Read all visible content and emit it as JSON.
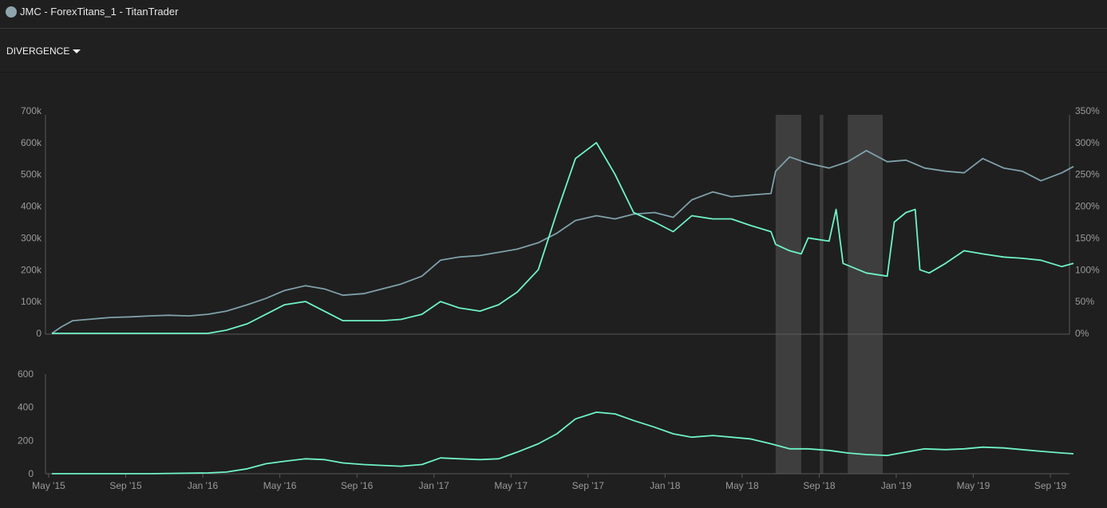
{
  "header": {
    "title": "JMC - ForexTitans_1 - TitanTrader"
  },
  "toolbar": {
    "dropdown_label": "DIVERGENCE"
  },
  "colors": {
    "equity": "#7fa0aa",
    "percent": "#6ff2c8",
    "lower": "#6ff2c8",
    "shade": "#444444",
    "axis": "#5a5a5a"
  },
  "chart_data": [
    {
      "type": "line",
      "x_axis_labels": [
        "May '15",
        "Sep '15",
        "Jan '16",
        "May '16",
        "Sep '16",
        "Jan '17",
        "May '17",
        "Sep '17",
        "Jan '18",
        "May '18",
        "Sep '18",
        "Jan '19",
        "May '19",
        "Sep '19"
      ],
      "x_range": [
        2015.33,
        2019.72
      ],
      "y_left": {
        "ticks": [
          "0",
          "100k",
          "200k",
          "300k",
          "400k",
          "500k",
          "600k",
          "700k"
        ],
        "ylim": [
          0,
          700000
        ]
      },
      "y_right": {
        "ticks": [
          "0%",
          "50%",
          "100%",
          "150%",
          "200%",
          "250%",
          "300%",
          "350%"
        ],
        "ylim": [
          0,
          350
        ]
      },
      "shaded_regions": [
        [
          2018.44,
          2018.55
        ],
        [
          2018.63,
          2018.645
        ],
        [
          2018.75,
          2018.9
        ]
      ],
      "series": [
        {
          "axis": "left",
          "points": [
            [
              2015.33,
              0
            ],
            [
              2015.37,
              20000
            ],
            [
              2015.42,
              40000
            ],
            [
              2015.5,
              45000
            ],
            [
              2015.58,
              50000
            ],
            [
              2015.67,
              52000
            ],
            [
              2015.75,
              55000
            ],
            [
              2015.83,
              57000
            ],
            [
              2015.92,
              55000
            ],
            [
              2016.0,
              60000
            ],
            [
              2016.08,
              70000
            ],
            [
              2016.17,
              90000
            ],
            [
              2016.25,
              110000
            ],
            [
              2016.33,
              135000
            ],
            [
              2016.42,
              150000
            ],
            [
              2016.5,
              140000
            ],
            [
              2016.58,
              120000
            ],
            [
              2016.67,
              125000
            ],
            [
              2016.75,
              140000
            ],
            [
              2016.83,
              155000
            ],
            [
              2016.92,
              180000
            ],
            [
              2017.0,
              230000
            ],
            [
              2017.08,
              240000
            ],
            [
              2017.17,
              245000
            ],
            [
              2017.25,
              255000
            ],
            [
              2017.33,
              265000
            ],
            [
              2017.42,
              285000
            ],
            [
              2017.5,
              315000
            ],
            [
              2017.58,
              355000
            ],
            [
              2017.67,
              370000
            ],
            [
              2017.75,
              360000
            ],
            [
              2017.83,
              375000
            ],
            [
              2017.92,
              380000
            ],
            [
              2018.0,
              365000
            ],
            [
              2018.08,
              420000
            ],
            [
              2018.17,
              445000
            ],
            [
              2018.25,
              430000
            ],
            [
              2018.33,
              435000
            ],
            [
              2018.42,
              440000
            ],
            [
              2018.44,
              510000
            ],
            [
              2018.5,
              555000
            ],
            [
              2018.58,
              535000
            ],
            [
              2018.67,
              520000
            ],
            [
              2018.75,
              540000
            ],
            [
              2018.83,
              575000
            ],
            [
              2018.92,
              540000
            ],
            [
              2019.0,
              545000
            ],
            [
              2019.08,
              520000
            ],
            [
              2019.17,
              510000
            ],
            [
              2019.25,
              505000
            ],
            [
              2019.33,
              550000
            ],
            [
              2019.42,
              520000
            ],
            [
              2019.5,
              510000
            ],
            [
              2019.58,
              480000
            ],
            [
              2019.67,
              505000
            ],
            [
              2019.72,
              525000
            ]
          ]
        },
        {
          "axis": "right",
          "points": [
            [
              2015.33,
              0
            ],
            [
              2015.5,
              0
            ],
            [
              2015.75,
              0
            ],
            [
              2016.0,
              0
            ],
            [
              2016.08,
              5
            ],
            [
              2016.17,
              15
            ],
            [
              2016.25,
              30
            ],
            [
              2016.33,
              45
            ],
            [
              2016.42,
              50
            ],
            [
              2016.5,
              35
            ],
            [
              2016.58,
              20
            ],
            [
              2016.67,
              20
            ],
            [
              2016.75,
              20
            ],
            [
              2016.83,
              22
            ],
            [
              2016.92,
              30
            ],
            [
              2017.0,
              50
            ],
            [
              2017.08,
              40
            ],
            [
              2017.17,
              35
            ],
            [
              2017.25,
              45
            ],
            [
              2017.33,
              65
            ],
            [
              2017.42,
              100
            ],
            [
              2017.5,
              190
            ],
            [
              2017.58,
              275
            ],
            [
              2017.67,
              300
            ],
            [
              2017.75,
              250
            ],
            [
              2017.83,
              190
            ],
            [
              2017.92,
              175
            ],
            [
              2018.0,
              160
            ],
            [
              2018.08,
              185
            ],
            [
              2018.17,
              180
            ],
            [
              2018.25,
              180
            ],
            [
              2018.33,
              170
            ],
            [
              2018.42,
              160
            ],
            [
              2018.44,
              140
            ],
            [
              2018.5,
              130
            ],
            [
              2018.55,
              125
            ],
            [
              2018.58,
              150
            ],
            [
              2018.67,
              145
            ],
            [
              2018.7,
              195
            ],
            [
              2018.73,
              110
            ],
            [
              2018.83,
              95
            ],
            [
              2018.92,
              90
            ],
            [
              2018.95,
              175
            ],
            [
              2019.0,
              190
            ],
            [
              2019.04,
              195
            ],
            [
              2019.06,
              100
            ],
            [
              2019.1,
              95
            ],
            [
              2019.17,
              110
            ],
            [
              2019.25,
              130
            ],
            [
              2019.33,
              125
            ],
            [
              2019.42,
              120
            ],
            [
              2019.5,
              118
            ],
            [
              2019.58,
              115
            ],
            [
              2019.67,
              105
            ],
            [
              2019.72,
              110
            ]
          ]
        }
      ]
    },
    {
      "type": "line",
      "x_range": [
        2015.33,
        2019.72
      ],
      "y_left": {
        "ticks": [
          "0",
          "200",
          "400",
          "600"
        ],
        "ylim": [
          0,
          600
        ]
      },
      "series": [
        {
          "points": [
            [
              2015.33,
              0
            ],
            [
              2015.5,
              0
            ],
            [
              2015.75,
              0
            ],
            [
              2016.0,
              5
            ],
            [
              2016.08,
              10
            ],
            [
              2016.17,
              30
            ],
            [
              2016.25,
              60
            ],
            [
              2016.33,
              75
            ],
            [
              2016.42,
              90
            ],
            [
              2016.5,
              85
            ],
            [
              2016.58,
              65
            ],
            [
              2016.67,
              55
            ],
            [
              2016.75,
              50
            ],
            [
              2016.83,
              45
            ],
            [
              2016.92,
              55
            ],
            [
              2017.0,
              95
            ],
            [
              2017.08,
              90
            ],
            [
              2017.17,
              85
            ],
            [
              2017.25,
              90
            ],
            [
              2017.33,
              130
            ],
            [
              2017.42,
              180
            ],
            [
              2017.5,
              240
            ],
            [
              2017.58,
              330
            ],
            [
              2017.67,
              370
            ],
            [
              2017.75,
              360
            ],
            [
              2017.83,
              320
            ],
            [
              2017.92,
              280
            ],
            [
              2018.0,
              240
            ],
            [
              2018.08,
              220
            ],
            [
              2018.17,
              230
            ],
            [
              2018.25,
              220
            ],
            [
              2018.33,
              210
            ],
            [
              2018.42,
              180
            ],
            [
              2018.5,
              150
            ],
            [
              2018.58,
              150
            ],
            [
              2018.67,
              140
            ],
            [
              2018.75,
              125
            ],
            [
              2018.83,
              115
            ],
            [
              2018.92,
              110
            ],
            [
              2019.0,
              130
            ],
            [
              2019.08,
              150
            ],
            [
              2019.17,
              145
            ],
            [
              2019.25,
              150
            ],
            [
              2019.33,
              160
            ],
            [
              2019.42,
              155
            ],
            [
              2019.5,
              145
            ],
            [
              2019.58,
              135
            ],
            [
              2019.67,
              125
            ],
            [
              2019.72,
              120
            ]
          ]
        }
      ]
    }
  ]
}
